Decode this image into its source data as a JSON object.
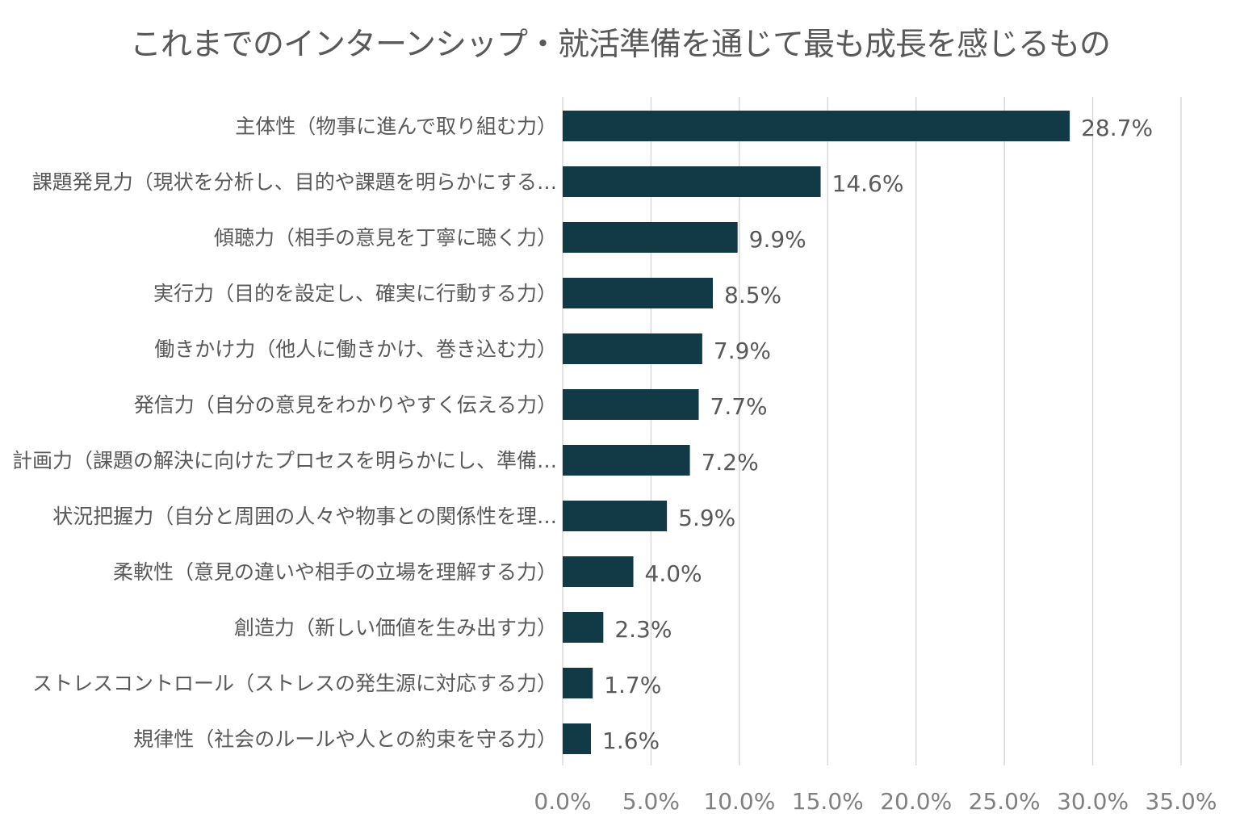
{
  "chart_data": {
    "type": "bar",
    "orientation": "horizontal",
    "title": "これまでのインターンシップ・就活準備を通じて最も成長を感じるもの",
    "categories": [
      "主体性（物事に進んで取り組む力）",
      "課題発見力（現状を分析し、目的や課題を明らかにする…",
      "傾聴力（相手の意見を丁寧に聴く力）",
      "実行力（目的を設定し、確実に行動する力）",
      "働きかけ力（他人に働きかけ、巻き込む力）",
      "発信力（自分の意見をわかりやすく伝える力）",
      "計画力（課題の解決に向けたプロセスを明らかにし、準備…",
      "状況把握力（自分と周囲の人々や物事との関係性を理…",
      "柔軟性（意見の違いや相手の立場を理解する力）",
      "創造力（新しい価値を生み出す力）",
      "ストレスコントロール（ストレスの発生源に対応する力）",
      "規律性（社会のルールや人との約束を守る力）"
    ],
    "values": [
      28.7,
      14.6,
      9.9,
      8.5,
      7.9,
      7.7,
      7.2,
      5.9,
      4.0,
      2.3,
      1.7,
      1.6
    ],
    "value_labels": [
      "28.7%",
      "14.6%",
      "9.9%",
      "8.5%",
      "7.9%",
      "7.7%",
      "7.2%",
      "5.9%",
      "4.0%",
      "2.3%",
      "1.7%",
      "1.6%"
    ],
    "x_ticks": [
      0,
      5,
      10,
      15,
      20,
      25,
      30,
      35
    ],
    "x_tick_labels": [
      "0.0%",
      "5.0%",
      "10.0%",
      "15.0%",
      "20.0%",
      "25.0%",
      "30.0%",
      "35.0%"
    ],
    "xlim": [
      0,
      35
    ],
    "xlabel": "",
    "ylabel": "",
    "grid": "vertical",
    "legend": "none",
    "bar_color": "#113946",
    "gridline_color": "#d9d9d9",
    "text_color": "#595959"
  }
}
